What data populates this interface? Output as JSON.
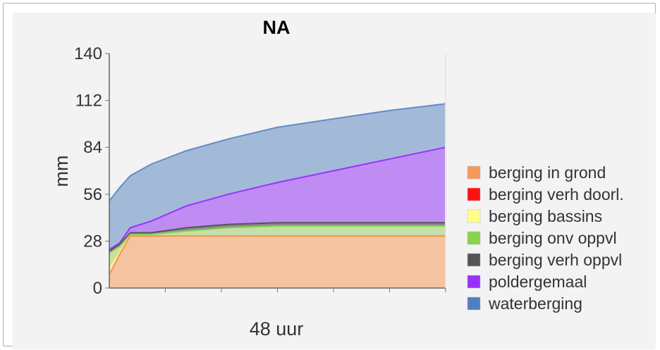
{
  "chart_data": {
    "type": "area",
    "stacked": false,
    "title": "NA",
    "ylabel": "mm",
    "xlabel": "48 uur",
    "ylim": [
      0,
      140
    ],
    "yticks": [
      0,
      28,
      56,
      84,
      112,
      140
    ],
    "x": [
      0,
      1.5,
      3,
      6,
      11,
      17,
      24,
      32,
      40,
      48
    ],
    "legend_position": "right",
    "series": [
      {
        "name": "waterberging",
        "color": "#5f8ec7",
        "fill": "#a3b9d8",
        "values": [
          52,
          60,
          67,
          74,
          82,
          89,
          96,
          101,
          106,
          110
        ]
      },
      {
        "name": "poldergemaal",
        "color": "#9b30ff",
        "fill": "#bf8cf3",
        "values": [
          23,
          27,
          36,
          40,
          49,
          56,
          63,
          70,
          77,
          84
        ]
      },
      {
        "name": "berging verh oppvl",
        "color": "#555555",
        "fill": "#8a8a8a",
        "values": [
          22,
          26,
          33,
          33,
          36,
          38,
          39,
          39,
          39,
          39
        ]
      },
      {
        "name": "berging onv oppvl",
        "color": "#8bd24f",
        "fill": "#c6dfa8",
        "values": [
          21,
          25,
          32,
          32,
          34,
          36,
          37,
          37,
          37,
          37
        ]
      },
      {
        "name": "berging bassins",
        "color": "#f4f06a",
        "fill": "#f6eebd",
        "values": [
          12,
          22,
          31,
          31,
          31,
          31,
          31,
          31,
          31,
          31
        ]
      },
      {
        "name": "berging verh doorl.",
        "color": "#ff2222",
        "fill": "#f0b596",
        "values": [
          8,
          20,
          31,
          31,
          31,
          31,
          31,
          31,
          31,
          31
        ]
      },
      {
        "name": "berging in grond",
        "color": "#f39a5b",
        "fill": "#f4c4a0",
        "values": [
          8,
          20,
          31,
          31,
          31,
          31,
          31,
          31,
          31,
          31
        ]
      }
    ],
    "legend": [
      {
        "name": "berging in grond",
        "color": "#f39a5b"
      },
      {
        "name": "berging verh doorl.",
        "color": "#ff1111"
      },
      {
        "name": "berging bassins",
        "color": "#ffff88"
      },
      {
        "name": "berging onv oppvl",
        "color": "#8bd24f"
      },
      {
        "name": "berging verh oppvl",
        "color": "#555555"
      },
      {
        "name": "poldergemaal",
        "color": "#9b30ff"
      },
      {
        "name": "waterberging",
        "color": "#4f7fc2"
      }
    ]
  }
}
